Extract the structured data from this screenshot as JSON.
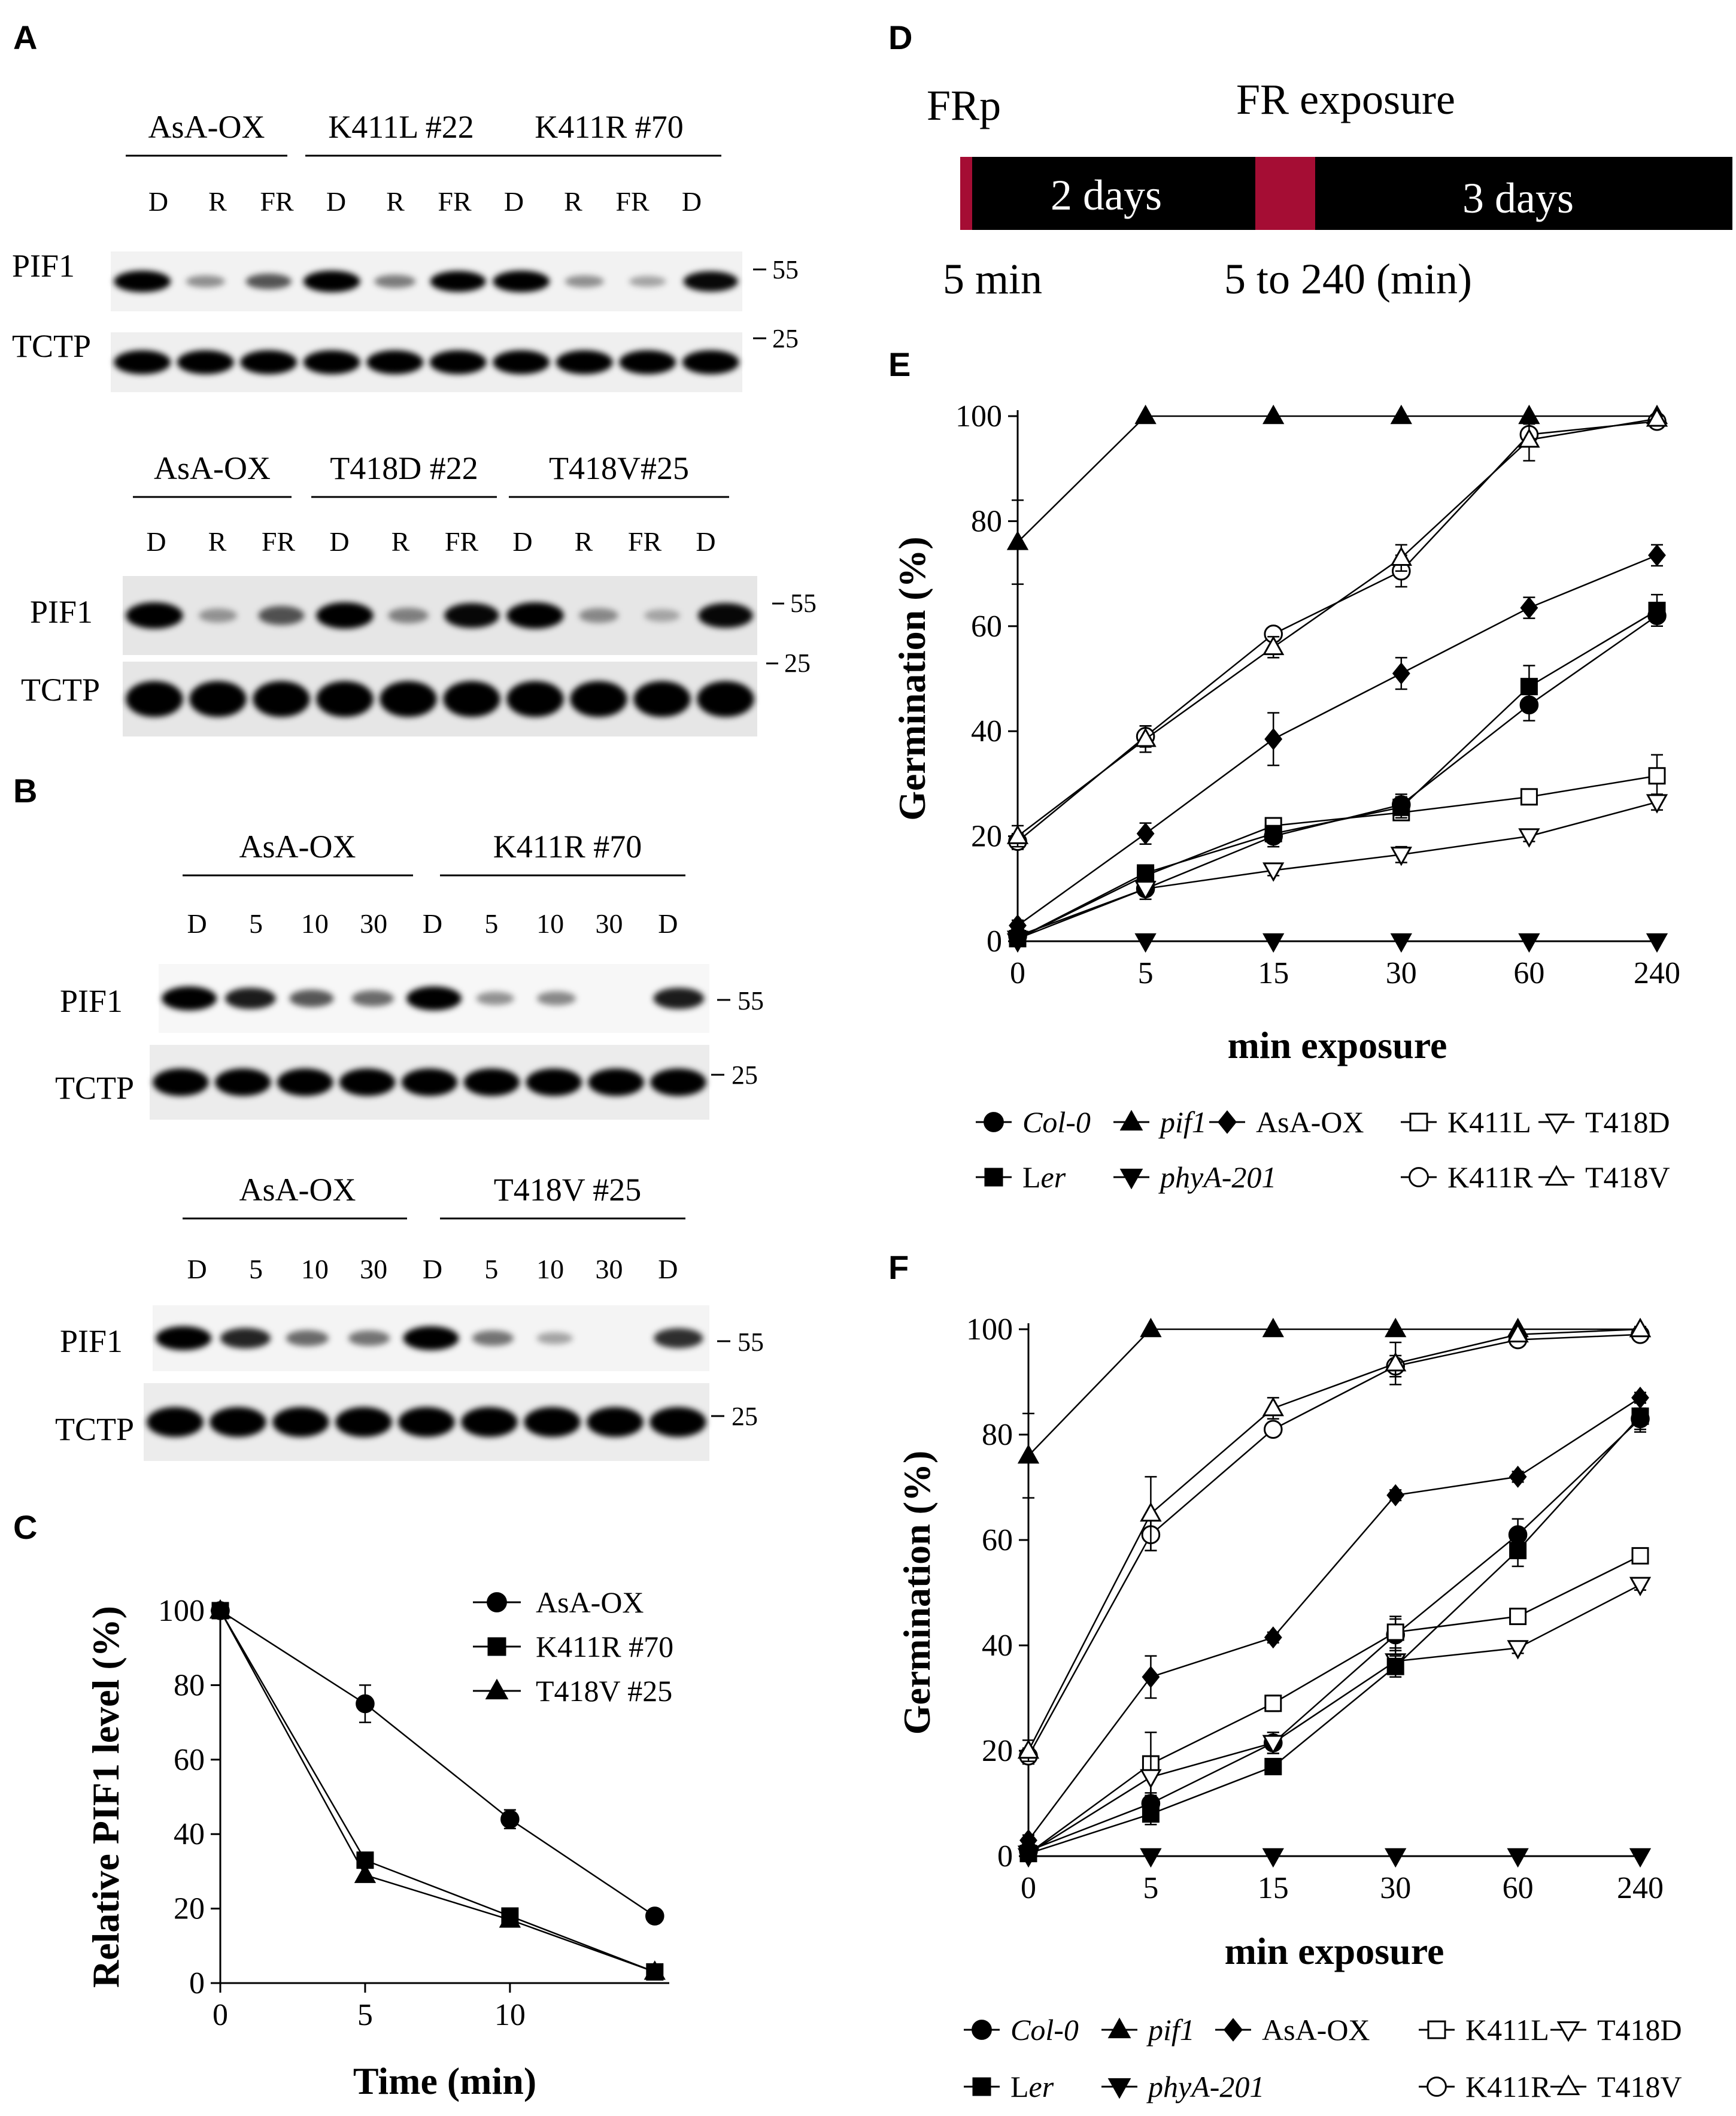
{
  "panels": {
    "A": {
      "letter": "A",
      "top_groups": [
        "AsA-OX",
        "K411L #22",
        "K411R #70"
      ],
      "top_lanes": [
        "D",
        "R",
        "FR",
        "D",
        "R",
        "FR",
        "D",
        "R",
        "FR",
        "D"
      ],
      "bottom_groups": [
        "AsA-OX",
        "T418D #22",
        "T418V#25"
      ],
      "bottom_lanes": [
        "D",
        "R",
        "FR",
        "D",
        "R",
        "FR",
        "D",
        "R",
        "FR",
        "D"
      ],
      "protein_1": "PIF1",
      "protein_2": "TCTP",
      "mw_1": "55",
      "mw_2": "25",
      "pif1_top": [
        1,
        0.2,
        0.5,
        1,
        0.3,
        0.95,
        1,
        0.2,
        0.1,
        0.9
      ],
      "pif1_bottom": [
        1,
        0.15,
        0.5,
        1,
        0.25,
        0.9,
        1,
        0.2,
        0.05,
        0.9
      ]
    },
    "B": {
      "letter": "B",
      "top_groups": [
        "AsA-OX",
        "K411R #70"
      ],
      "bottom_groups": [
        "AsA-OX",
        "T418V #25"
      ],
      "lanes": [
        "D",
        "5",
        "10",
        "30",
        "D",
        "5",
        "10",
        "30",
        "D"
      ],
      "protein_1": "PIF1",
      "protein_2": "TCTP",
      "mw_1": "55",
      "mw_2": "25",
      "pif1_top": [
        1,
        0.8,
        0.5,
        0.4,
        1,
        0.2,
        0.25,
        0.0,
        0.8
      ],
      "pif1_bottom": [
        1,
        0.75,
        0.4,
        0.35,
        1,
        0.35,
        0.1,
        0.0,
        0.7
      ]
    },
    "C": {
      "letter": "C"
    },
    "D": {
      "letter": "D",
      "label_frp": "FRp",
      "label_fr_exposure": "FR exposure",
      "segment_1": "2 days",
      "segment_2": "3 days",
      "label_5min": "5 min",
      "label_range": "5 to 240 (min)",
      "bar_color": "#000000",
      "accent_color": "#a50d34"
    },
    "E": {
      "letter": "E"
    },
    "F": {
      "letter": "F"
    }
  },
  "chart_data": [
    {
      "id": "C",
      "type": "line",
      "xlabel": "Time (min)",
      "ylabel": "Relative PIF1 level (%)",
      "x": [
        0,
        5,
        10,
        15
      ],
      "xticks": [
        "0",
        "5",
        "10"
      ],
      "xlim": [
        0,
        15.5
      ],
      "ylim": [
        0,
        100
      ],
      "yticks": [
        "0",
        "20",
        "40",
        "60",
        "80",
        "100"
      ],
      "series": [
        {
          "name": "AsA-OX",
          "marker": "circle",
          "values": [
            100,
            75,
            44,
            18
          ],
          "errors": [
            0,
            5,
            2.5,
            0
          ]
        },
        {
          "name": "K411R #70",
          "marker": "square",
          "values": [
            100,
            33,
            18,
            3
          ],
          "errors": [
            0,
            0,
            2,
            0
          ]
        },
        {
          "name": "T418V #25",
          "marker": "triangle-up",
          "values": [
            100,
            29,
            17,
            3
          ],
          "errors": [
            0,
            0,
            1.5,
            0
          ]
        }
      ]
    },
    {
      "id": "E",
      "type": "line",
      "xlabel": "min exposure",
      "ylabel": "Germination (%)",
      "categories": [
        "0",
        "5",
        "15",
        "30",
        "60",
        "240"
      ],
      "ylim": [
        0,
        100
      ],
      "yticks": [
        "0",
        "20",
        "40",
        "60",
        "80",
        "100"
      ],
      "series": [
        {
          "name": "Col-0",
          "italic": true,
          "marker": "circle",
          "values": [
            1,
            10,
            20,
            26,
            45,
            62
          ],
          "errors": [
            1,
            2,
            2,
            2,
            3,
            2
          ]
        },
        {
          "name": "pif1",
          "italic": true,
          "marker": "triangle-up",
          "values": [
            76,
            100,
            100,
            100,
            100,
            100
          ],
          "errors": [
            8,
            0,
            0,
            0,
            0,
            0
          ]
        },
        {
          "name": "AsA-OX",
          "italic": false,
          "marker": "diamond",
          "values": [
            3,
            20.5,
            38.5,
            51,
            63.5,
            73.5
          ],
          "errors": [
            1,
            2,
            5,
            3,
            2,
            2
          ]
        },
        {
          "name": "K411L",
          "italic": false,
          "marker": "square-open",
          "values": [
            0.5,
            12.5,
            22,
            24.5,
            27.5,
            31.5
          ],
          "errors": [
            0.5,
            1,
            1,
            1,
            1,
            4
          ]
        },
        {
          "name": "T418D",
          "italic": false,
          "marker": "triangle-down-open",
          "values": [
            0.5,
            10,
            13.5,
            16.5,
            20,
            26.5
          ],
          "errors": [
            0.5,
            1,
            1,
            1.5,
            1,
            1.5
          ]
        },
        {
          "name": "Ler",
          "italic": true,
          "prefix": "L",
          "suffix": "er",
          "marker": "square",
          "values": [
            0.5,
            13,
            20.5,
            25.5,
            48.5,
            63
          ],
          "errors": [
            0.5,
            1,
            1,
            2,
            4,
            3
          ]
        },
        {
          "name": "phyA-201",
          "italic": true,
          "marker": "triangle-down",
          "values": [
            0,
            0,
            0,
            0,
            0,
            0
          ],
          "errors": [
            0,
            0,
            0,
            0,
            0,
            0
          ]
        },
        {
          "name": "K411R",
          "italic": false,
          "marker": "circle-open",
          "values": [
            19,
            39,
            58.5,
            70.5,
            96.5,
            99
          ],
          "errors": [
            1.5,
            2,
            1,
            3,
            2,
            0.5
          ]
        },
        {
          "name": "T418V",
          "italic": false,
          "marker": "triangle-up-open",
          "values": [
            20,
            38.5,
            56,
            73,
            95.5,
            99.5
          ],
          "errors": [
            2,
            2.5,
            2,
            2.5,
            4,
            0.5
          ]
        }
      ]
    },
    {
      "id": "F",
      "type": "line",
      "xlabel": "min exposure",
      "ylabel": "Germination (%)",
      "categories": [
        "0",
        "5",
        "15",
        "30",
        "60",
        "240"
      ],
      "ylim": [
        0,
        100
      ],
      "yticks": [
        "0",
        "20",
        "40",
        "60",
        "80",
        "100"
      ],
      "series": [
        {
          "name": "Col-0",
          "italic": true,
          "marker": "circle",
          "values": [
            1,
            10,
            21.5,
            42,
            61,
            83
          ],
          "errors": [
            1,
            2,
            2,
            3,
            3,
            2
          ]
        },
        {
          "name": "pif1",
          "italic": true,
          "marker": "triangle-up",
          "values": [
            76,
            100,
            100,
            100,
            100,
            100
          ],
          "errors": [
            8,
            0,
            0,
            0,
            0,
            0
          ]
        },
        {
          "name": "AsA-OX",
          "italic": false,
          "marker": "diamond",
          "values": [
            3,
            34,
            41.5,
            68.5,
            72,
            87
          ],
          "errors": [
            1,
            4,
            1,
            1,
            1,
            1
          ]
        },
        {
          "name": "K411L",
          "italic": false,
          "marker": "square-open",
          "values": [
            0.5,
            17.5,
            29,
            42.5,
            45.5,
            57
          ],
          "errors": [
            0.5,
            6,
            1.5,
            3,
            1,
            1
          ]
        },
        {
          "name": "T418D",
          "italic": false,
          "marker": "triangle-down-open",
          "values": [
            0.5,
            15,
            21.5,
            37,
            39.5,
            51.5
          ],
          "errors": [
            0.5,
            4,
            2,
            2,
            1,
            1
          ]
        },
        {
          "name": "Ler",
          "italic": true,
          "prefix": "L",
          "suffix": "er",
          "marker": "square",
          "values": [
            0.5,
            8,
            17,
            36,
            58,
            83.5
          ],
          "errors": [
            0.5,
            2,
            1,
            2,
            3,
            3
          ]
        },
        {
          "name": "phyA-201",
          "italic": true,
          "marker": "triangle-down",
          "values": [
            0,
            0,
            0,
            0,
            0,
            0
          ],
          "errors": [
            0,
            0,
            0,
            0,
            0,
            0
          ]
        },
        {
          "name": "K411R",
          "italic": false,
          "marker": "circle-open",
          "values": [
            19,
            61,
            81,
            93,
            98,
            99
          ],
          "errors": [
            1.5,
            3,
            1,
            2,
            1,
            0.5
          ]
        },
        {
          "name": "T418V",
          "italic": false,
          "marker": "triangle-up-open",
          "values": [
            20,
            65,
            85,
            93.5,
            99,
            100
          ],
          "errors": [
            2,
            7,
            2,
            4,
            1,
            0.5
          ]
        }
      ]
    }
  ]
}
